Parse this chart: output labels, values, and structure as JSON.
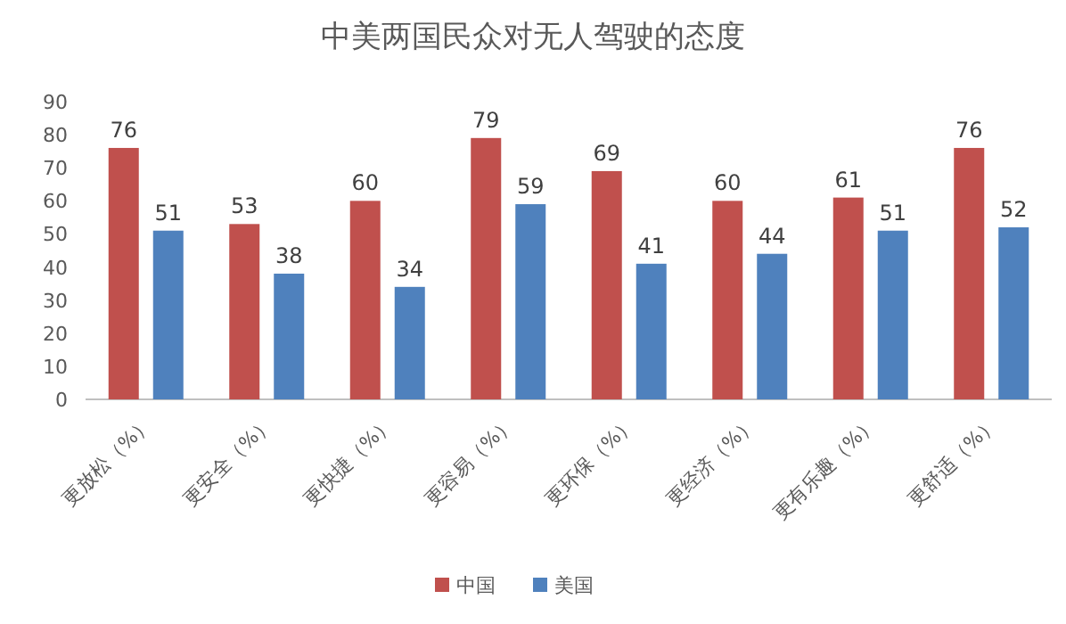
{
  "chart_data": {
    "type": "bar",
    "title": "中美两国民众对无人驾驶的态度",
    "categories": [
      "更放松（%）",
      "更安全（%）",
      "更快捷（%）",
      "更容易（%）",
      "更环保（%）",
      "更经济（%）",
      "更有乐趣（%）",
      "更舒适（%）"
    ],
    "series": [
      {
        "name": "中国",
        "color": "#c0504d",
        "values": [
          76,
          53,
          60,
          79,
          69,
          60,
          61,
          76
        ]
      },
      {
        "name": "美国",
        "color": "#4f81bd",
        "values": [
          51,
          38,
          34,
          59,
          41,
          44,
          51,
          52
        ]
      }
    ],
    "ylim": [
      0,
      90
    ],
    "yticks": [
      0,
      10,
      20,
      30,
      40,
      50,
      60,
      70,
      80,
      90
    ],
    "data_labels": true,
    "legend": "bottom",
    "grid": false
  }
}
